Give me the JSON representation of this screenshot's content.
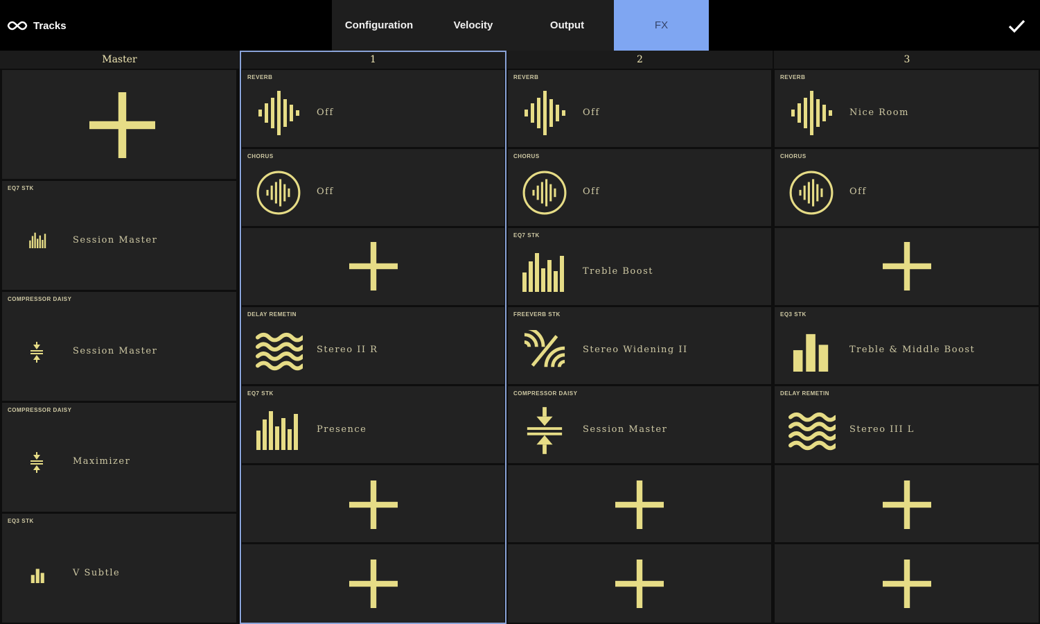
{
  "header": {
    "app_title": "Tracks",
    "tabs": [
      {
        "label": "Configuration"
      },
      {
        "label": "Velocity"
      },
      {
        "label": "Output"
      },
      {
        "label": "FX"
      }
    ]
  },
  "columns": [
    {
      "title": "Master"
    },
    {
      "title": "1"
    },
    {
      "title": "2"
    },
    {
      "title": "3"
    }
  ],
  "master": [
    {
      "label": "EQ7 STK",
      "name": "Session Master",
      "icon": "eq-small-icon"
    },
    {
      "label": "COMPRESSOR DAISY",
      "name": "Session Master",
      "icon": "compressor-small-icon"
    },
    {
      "label": "COMPRESSOR DAISY",
      "name": "Maximizer",
      "icon": "compressor-small-icon"
    },
    {
      "label": "EQ3 STK",
      "name": "V Subtle",
      "icon": "eq3-small-icon"
    }
  ],
  "track1": [
    {
      "label": "REVERB",
      "name": "Off",
      "icon": "reverb-icon"
    },
    {
      "label": "CHORUS",
      "name": "Off",
      "icon": "chorus-icon"
    },
    {
      "label": "DELAY REMETIN",
      "name": "Stereo II R",
      "icon": "delay-waves-icon"
    },
    {
      "label": "EQ7 STK",
      "name": "Presence",
      "icon": "eq7-icon"
    }
  ],
  "track2": [
    {
      "label": "REVERB",
      "name": "Off",
      "icon": "reverb-icon"
    },
    {
      "label": "CHORUS",
      "name": "Off",
      "icon": "chorus-icon"
    },
    {
      "label": "EQ7 STK",
      "name": "Treble Boost",
      "icon": "eq7-icon"
    },
    {
      "label": "FREEVERB STK",
      "name": "Stereo Widening II",
      "icon": "stereo-widening-icon"
    },
    {
      "label": "COMPRESSOR DAISY",
      "name": "Session Master",
      "icon": "compressor-icon"
    }
  ],
  "track3": [
    {
      "label": "REVERB",
      "name": "Nice Room",
      "icon": "reverb-icon"
    },
    {
      "label": "CHORUS",
      "name": "Off",
      "icon": "chorus-icon"
    },
    {
      "label": "EQ3 STK",
      "name": "Treble & Middle Boost",
      "icon": "eq3-icon"
    },
    {
      "label": "DELAY REMETIN",
      "name": "Stereo III L",
      "icon": "delay-waves-icon"
    }
  ],
  "colors": {
    "accent": "#e6dc86",
    "active_tab": "#7fa6f2",
    "cell_bg": "#222222",
    "selection_border": "#8aa3d8"
  }
}
